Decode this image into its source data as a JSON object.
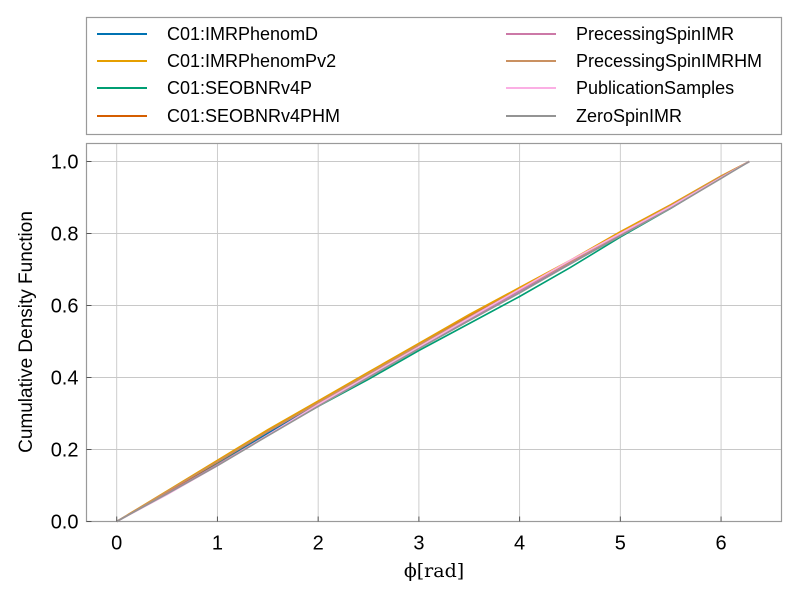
{
  "chart_data": {
    "type": "line",
    "xlabel": "ϕ[rad]",
    "ylabel": "Cumulative Density Function",
    "xlim": [
      -0.3,
      6.6
    ],
    "ylim": [
      0,
      1.05
    ],
    "xticks": [
      0,
      1,
      2,
      3,
      4,
      5,
      6
    ],
    "xtick_labels": [
      "0",
      "1",
      "2",
      "3",
      "4",
      "5",
      "6"
    ],
    "yticks": [
      0,
      0.2,
      0.4,
      0.6,
      0.8,
      1.0
    ],
    "ytick_labels": [
      "0.0",
      "0.2",
      "0.4",
      "0.6",
      "0.8",
      "1.0"
    ],
    "grid": true,
    "legend_position": "top, above plot, two columns",
    "series": [
      {
        "name": "C01:IMRPhenomD",
        "color": "#0072b2",
        "x": [
          0,
          0.5,
          1,
          1.5,
          2,
          2.5,
          3,
          3.5,
          4,
          4.5,
          5,
          5.5,
          6,
          6.28
        ],
        "y": [
          0,
          0.08,
          0.16,
          0.245,
          0.325,
          0.405,
          0.485,
          0.56,
          0.64,
          0.715,
          0.795,
          0.87,
          0.955,
          1.0
        ]
      },
      {
        "name": "C01:IMRPhenomPv2",
        "color": "#e69f00",
        "x": [
          0,
          0.5,
          1,
          1.5,
          2,
          2.5,
          3,
          3.5,
          4,
          4.5,
          5,
          5.5,
          6,
          6.28
        ],
        "y": [
          0,
          0.085,
          0.17,
          0.255,
          0.335,
          0.415,
          0.495,
          0.575,
          0.65,
          0.725,
          0.805,
          0.88,
          0.96,
          1.0
        ]
      },
      {
        "name": "C01:SEOBNRv4P",
        "color": "#009e73",
        "x": [
          0,
          0.5,
          1,
          1.5,
          2,
          2.5,
          3,
          3.5,
          4,
          4.5,
          5,
          5.5,
          6,
          6.28
        ],
        "y": [
          0,
          0.08,
          0.16,
          0.24,
          0.32,
          0.395,
          0.475,
          0.55,
          0.625,
          0.705,
          0.79,
          0.87,
          0.955,
          1.0
        ]
      },
      {
        "name": "C01:SEOBNRv4PHM",
        "color": "#d55e00",
        "x": [
          0,
          0.5,
          1,
          1.5,
          2,
          2.5,
          3,
          3.5,
          4,
          4.5,
          5,
          5.5,
          6,
          6.28
        ],
        "y": [
          0,
          0.082,
          0.165,
          0.25,
          0.33,
          0.41,
          0.49,
          0.57,
          0.645,
          0.72,
          0.8,
          0.875,
          0.958,
          1.0
        ]
      },
      {
        "name": "PrecessingSpinIMR",
        "color": "#cc79a7",
        "x": [
          0,
          0.5,
          1,
          1.5,
          2,
          2.5,
          3,
          3.5,
          4,
          4.5,
          5,
          5.5,
          6,
          6.28
        ],
        "y": [
          0,
          0.078,
          0.158,
          0.24,
          0.322,
          0.4,
          0.482,
          0.56,
          0.64,
          0.72,
          0.797,
          0.873,
          0.956,
          1.0
        ]
      },
      {
        "name": "PrecessingSpinIMRHM",
        "color": "#ca9161",
        "x": [
          0,
          0.5,
          1,
          1.5,
          2,
          2.5,
          3,
          3.5,
          4,
          4.5,
          5,
          5.5,
          6,
          6.28
        ],
        "y": [
          0,
          0.083,
          0.166,
          0.25,
          0.33,
          0.41,
          0.49,
          0.568,
          0.645,
          0.722,
          0.8,
          0.877,
          0.958,
          1.0
        ]
      },
      {
        "name": "PublicationSamples",
        "color": "#fbafe4",
        "x": [
          0,
          0.5,
          1,
          1.5,
          2,
          2.5,
          3,
          3.5,
          4,
          4.5,
          5,
          5.5,
          6,
          6.28
        ],
        "y": [
          0,
          0.075,
          0.155,
          0.24,
          0.325,
          0.405,
          0.485,
          0.565,
          0.645,
          0.725,
          0.8,
          0.875,
          0.955,
          1.0
        ]
      },
      {
        "name": "ZeroSpinIMR",
        "color": "#949494",
        "x": [
          0,
          0.5,
          1,
          1.5,
          2,
          2.5,
          3,
          3.5,
          4,
          4.5,
          5,
          5.5,
          6,
          6.28
        ],
        "y": [
          0,
          0.077,
          0.155,
          0.238,
          0.32,
          0.4,
          0.48,
          0.558,
          0.635,
          0.715,
          0.793,
          0.87,
          0.953,
          1.0
        ]
      }
    ]
  }
}
